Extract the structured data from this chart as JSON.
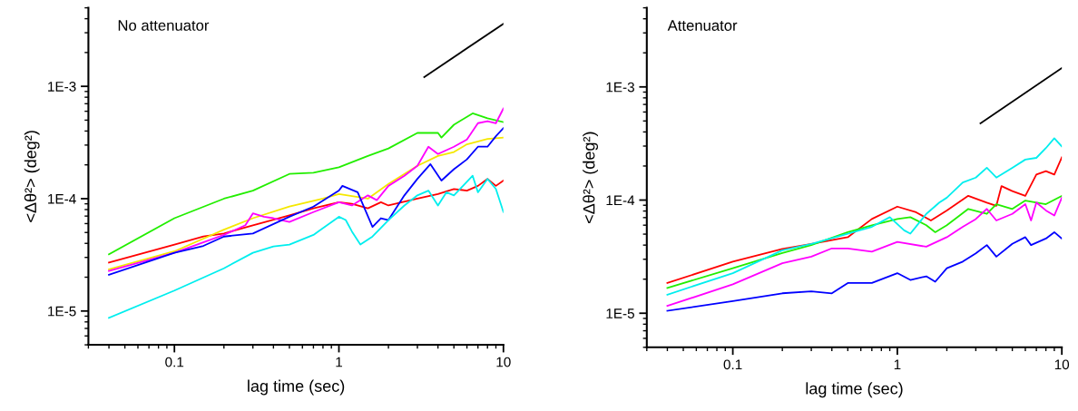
{
  "chart_data": [
    {
      "type": "line",
      "title": "No attenuator",
      "xlabel": "lag time (sec)",
      "ylabel": "<Δθ²> (deg²)",
      "log": "xy",
      "grid": false,
      "xlim": [
        0.03,
        10
      ],
      "ylim": [
        5e-06,
        0.005
      ],
      "xticks": [
        0.1,
        1,
        10
      ],
      "yticks": [
        {
          "value": 1e-05,
          "label": "1E-5"
        },
        {
          "value": 0.0001,
          "label": "1E-4"
        },
        {
          "value": 0.001,
          "label": "1E-3"
        }
      ],
      "series": [
        {
          "color": "#22ee00",
          "x": [
            0.04,
            0.1,
            0.2,
            0.3,
            0.5,
            0.7,
            1,
            1.5,
            2,
            3,
            4,
            4.2,
            5,
            6.5,
            8,
            10
          ],
          "values": [
            3.2e-05,
            6.7e-05,
            0.0001,
            0.000118,
            0.000166,
            0.00017,
            0.00019,
            0.00024,
            0.00028,
            0.000385,
            0.000385,
            0.00035,
            0.000455,
            0.000575,
            0.00052,
            0.00048
          ]
        },
        {
          "color": "#ff0000",
          "x": [
            0.04,
            0.1,
            0.15,
            0.2,
            0.3,
            0.5,
            0.7,
            1,
            1.2,
            1.5,
            1.8,
            2,
            3,
            4,
            5,
            6,
            7,
            8,
            9,
            10
          ],
          "values": [
            2.7e-05,
            3.9e-05,
            4.6e-05,
            4.9e-05,
            5.8e-05,
            7.1e-05,
            8.2e-05,
            9.3e-05,
            9e-05,
            8.2e-05,
            9.3e-05,
            8.7e-05,
            0.0001,
            0.00011,
            0.000122,
            0.000118,
            0.00013,
            0.00015,
            0.00013,
            0.000145
          ]
        },
        {
          "color": "#f5e800",
          "x": [
            0.04,
            0.1,
            0.2,
            0.3,
            0.5,
            0.8,
            1,
            1.5,
            2,
            3,
            4,
            5,
            6,
            8,
            10
          ],
          "values": [
            2.35e-05,
            3.4e-05,
            5.3e-05,
            6.7e-05,
            8.5e-05,
            0.0001,
            0.00011,
            0.0001,
            0.000135,
            0.000196,
            0.00024,
            0.00026,
            0.000305,
            0.00034,
            0.00035
          ]
        },
        {
          "color": "#ff00ff",
          "x": [
            0.04,
            0.1,
            0.2,
            0.27,
            0.3,
            0.35,
            0.4,
            0.5,
            0.7,
            1,
            1.2,
            1.5,
            1.7,
            2,
            2.5,
            3,
            3.5,
            4,
            5,
            6,
            7,
            8,
            9,
            10
          ],
          "values": [
            2.27e-05,
            3.3e-05,
            4.76e-05,
            5.8e-05,
            7.4e-05,
            6.9e-05,
            6.7e-05,
            6.2e-05,
            7.6e-05,
            9.3e-05,
            8.7e-05,
            0.000107,
            9.7e-05,
            0.00013,
            0.00016,
            0.000196,
            0.00029,
            0.00025,
            0.00029,
            0.000336,
            0.00047,
            0.00049,
            0.00047,
            0.000635
          ]
        },
        {
          "color": "#0000ff",
          "x": [
            0.04,
            0.1,
            0.15,
            0.2,
            0.3,
            0.5,
            0.7,
            1,
            1.05,
            1.3,
            1.6,
            1.8,
            2,
            2.5,
            3,
            3.6,
            4.2,
            5,
            6,
            7,
            8,
            9,
            10
          ],
          "values": [
            2.1e-05,
            3.3e-05,
            3.8e-05,
            4.6e-05,
            4.9e-05,
            6.9e-05,
            8.5e-05,
            0.000118,
            0.00013,
            0.000114,
            5.6e-05,
            6.7e-05,
            6.45e-05,
            0.000107,
            0.00015,
            0.000203,
            0.000145,
            0.000183,
            0.000224,
            0.00029,
            0.00029,
            0.00036,
            0.000425
          ]
        },
        {
          "color": "#00eeee",
          "x": [
            0.04,
            0.1,
            0.2,
            0.3,
            0.4,
            0.5,
            0.7,
            1,
            1.1,
            1.2,
            1.35,
            1.6,
            2,
            2.5,
            3,
            3.5,
            4,
            4.5,
            5,
            6.5,
            7,
            8,
            9,
            10
          ],
          "values": [
            8.7e-06,
            1.52e-05,
            2.4e-05,
            3.3e-05,
            3.76e-05,
            3.9e-05,
            4.76e-05,
            6.9e-05,
            6.45e-05,
            5.1e-05,
            3.9e-05,
            4.6e-05,
            6.45e-05,
            8.7e-05,
            0.000107,
            0.000118,
            8.7e-05,
            0.000114,
            0.000107,
            0.00016,
            0.000114,
            0.00015,
            0.000122,
            7.6e-05
          ]
        },
        {
          "color": "#000000",
          "x": [
            3.3,
            10
          ],
          "values": [
            0.00121,
            0.0036
          ]
        }
      ]
    },
    {
      "type": "line",
      "title": "Attenuator",
      "xlabel": "lag time (sec)",
      "ylabel": "<Δθ²> (deg²)",
      "log": "xy",
      "grid": false,
      "xlim": [
        0.03,
        10
      ],
      "ylim": [
        5e-06,
        0.005
      ],
      "xticks": [
        0.1,
        1,
        10
      ],
      "yticks": [
        {
          "value": 1e-05,
          "label": "1E-5"
        },
        {
          "value": 0.0001,
          "label": "1E-4"
        },
        {
          "value": 0.001,
          "label": "1E-3"
        }
      ],
      "series": [
        {
          "color": "#ff0000",
          "x": [
            0.04,
            0.1,
            0.2,
            0.3,
            0.5,
            0.7,
            1,
            1.3,
            1.6,
            2,
            2.7,
            3.5,
            4,
            4.3,
            5,
            6,
            7,
            8,
            9,
            10
          ],
          "values": [
            1.85e-05,
            2.86e-05,
            3.7e-05,
            4.1e-05,
            4.7e-05,
            6.8e-05,
            8.75e-05,
            7.8e-05,
            6.6e-05,
            8.1e-05,
            0.000109,
            9.5e-05,
            8.9e-05,
            0.000133,
            0.00012,
            0.000109,
            0.000168,
            0.00018,
            0.000168,
            0.000239
          ]
        },
        {
          "color": "#22ee00",
          "x": [
            0.04,
            0.1,
            0.2,
            0.3,
            0.5,
            0.7,
            1,
            1.2,
            1.5,
            1.7,
            2,
            2.7,
            3.5,
            4,
            5,
            6,
            8,
            10
          ],
          "values": [
            1.67e-05,
            2.5e-05,
            3.4e-05,
            4e-05,
            5.2e-05,
            5.97e-05,
            6.8e-05,
            7.06e-05,
            6e-05,
            5.2e-05,
            6e-05,
            8.35e-05,
            7.55e-05,
            9.2e-05,
            8.35e-05,
            9.9e-05,
            9.2e-05,
            0.000109
          ]
        },
        {
          "color": "#00eeee",
          "x": [
            0.04,
            0.1,
            0.2,
            0.3,
            0.5,
            0.7,
            0.9,
            1.1,
            1.2,
            1.5,
            1.8,
            2,
            2.5,
            3,
            3.5,
            4,
            5,
            6,
            7,
            8,
            9,
            10
          ],
          "values": [
            1.46e-05,
            2.26e-05,
            3.6e-05,
            4.1e-05,
            5.05e-05,
            5.8e-05,
            7.06e-05,
            5.4e-05,
            5.05e-05,
            7.55e-05,
            9.5e-05,
            0.000105,
            0.000143,
            0.000158,
            0.000193,
            0.000158,
            0.000193,
            0.000228,
            0.000236,
            0.000288,
            0.000352,
            0.000298
          ]
        },
        {
          "color": "#ff00ff",
          "x": [
            0.04,
            0.1,
            0.2,
            0.3,
            0.4,
            0.5,
            0.7,
            1,
            1.5,
            2,
            2.5,
            3,
            3.5,
            4,
            5,
            6,
            6.5,
            7,
            8,
            9,
            10
          ],
          "values": [
            1.16e-05,
            1.8e-05,
            2.77e-05,
            3.16e-05,
            3.74e-05,
            3.74e-05,
            3.5e-05,
            4.27e-05,
            3.87e-05,
            4.7e-05,
            5.8e-05,
            6.8e-05,
            8.35e-05,
            6.6e-05,
            7.55e-05,
            9.2e-05,
            6.6e-05,
            9.5e-05,
            8.1e-05,
            7.3e-05,
            0.000105
          ]
        },
        {
          "color": "#0000ff",
          "x": [
            0.04,
            0.1,
            0.2,
            0.3,
            0.4,
            0.5,
            0.7,
            1,
            1.2,
            1.5,
            1.7,
            2,
            2.5,
            3,
            3.5,
            4,
            5,
            6,
            6.5,
            8,
            9,
            10
          ],
          "values": [
            1.05e-05,
            1.28e-05,
            1.5e-05,
            1.56e-05,
            1.5e-05,
            1.85e-05,
            1.85e-05,
            2.26e-05,
            1.97e-05,
            2.12e-05,
            1.9e-05,
            2.5e-05,
            2.86e-05,
            3.38e-05,
            4e-05,
            3.16e-05,
            4.1e-05,
            4.7e-05,
            4e-05,
            4.57e-05,
            5.2e-05,
            4.57e-05
          ]
        },
        {
          "color": "#000000",
          "x": [
            3.2,
            10
          ],
          "values": [
            0.000475,
            0.00147
          ]
        }
      ]
    }
  ]
}
